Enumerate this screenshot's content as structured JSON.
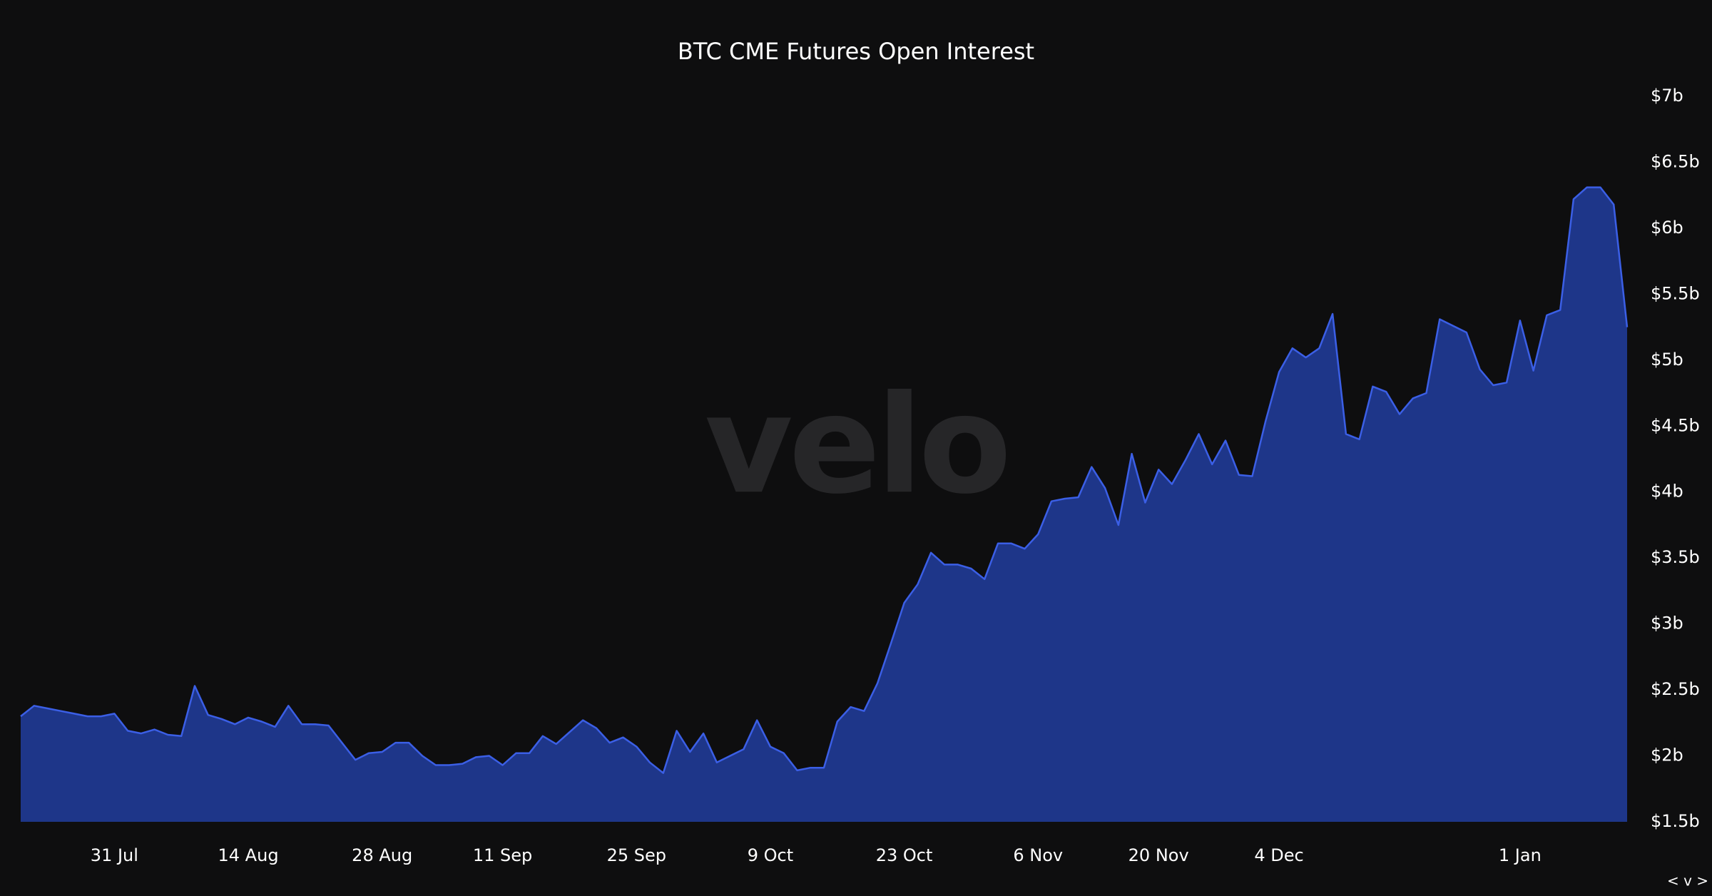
{
  "chart_data": {
    "type": "area",
    "title": "BTC CME Futures Open Interest",
    "watermark": "velo",
    "controls": "< v >",
    "categories": [
      null,
      null,
      null,
      null,
      null,
      null,
      null,
      "31 Jul",
      null,
      null,
      null,
      null,
      null,
      null,
      null,
      null,
      null,
      "14 Aug",
      null,
      null,
      null,
      null,
      null,
      null,
      null,
      null,
      null,
      "28 Aug",
      null,
      null,
      null,
      null,
      null,
      null,
      null,
      null,
      "11 Sep",
      null,
      null,
      null,
      null,
      null,
      null,
      null,
      null,
      null,
      "25 Sep",
      null,
      null,
      null,
      null,
      null,
      null,
      null,
      null,
      null,
      "9 Oct",
      null,
      null,
      null,
      null,
      null,
      null,
      null,
      null,
      null,
      "23 Oct",
      null,
      null,
      null,
      null,
      null,
      null,
      null,
      null,
      null,
      "6 Nov",
      null,
      null,
      null,
      null,
      null,
      null,
      null,
      null,
      "20 Nov",
      null,
      null,
      null,
      null,
      null,
      null,
      null,
      null,
      "4 Dec",
      null,
      null,
      null,
      null,
      null,
      null,
      null,
      null,
      null,
      null,
      null,
      null,
      null,
      null,
      null,
      null,
      null,
      "1 Jan",
      null,
      null,
      null,
      null,
      null,
      null,
      null,
      null
    ],
    "values": [
      2.3,
      2.38,
      2.36,
      2.34,
      2.32,
      2.3,
      2.3,
      2.32,
      2.19,
      2.17,
      2.2,
      2.16,
      2.15,
      2.53,
      2.31,
      2.28,
      2.24,
      2.29,
      2.26,
      2.22,
      2.38,
      2.24,
      2.24,
      2.23,
      2.1,
      1.97,
      2.02,
      2.03,
      2.1,
      2.1,
      2.0,
      1.93,
      1.93,
      1.94,
      1.99,
      2.0,
      1.93,
      2.02,
      2.02,
      2.15,
      2.09,
      2.18,
      2.27,
      2.21,
      2.1,
      2.14,
      2.07,
      1.95,
      1.87,
      2.19,
      2.03,
      2.17,
      1.95,
      2.0,
      2.05,
      2.27,
      2.07,
      2.02,
      1.89,
      1.91,
      1.91,
      2.26,
      2.37,
      2.34,
      2.55,
      2.85,
      3.16,
      3.3,
      3.54,
      3.45,
      3.45,
      3.42,
      3.34,
      3.61,
      3.61,
      3.57,
      3.68,
      3.93,
      3.95,
      3.96,
      4.19,
      4.03,
      3.75,
      4.29,
      3.92,
      4.17,
      4.06,
      4.24,
      4.44,
      4.21,
      4.39,
      4.13,
      4.12,
      4.54,
      4.91,
      5.09,
      5.02,
      5.09,
      5.35,
      4.44,
      4.4,
      4.8,
      4.76,
      4.59,
      4.71,
      4.75,
      5.31,
      5.26,
      5.21,
      4.93,
      4.81,
      4.83,
      5.3,
      4.92,
      5.34,
      5.38,
      6.22,
      6.31,
      6.31,
      6.18,
      5.25
    ],
    "color": "#1e3689",
    "line_color": "#3b5fe6",
    "ylim": [
      1.5,
      7
    ],
    "yticks": [
      {
        "value": 1.5,
        "label": "$1.5b"
      },
      {
        "value": 2,
        "label": "$2b"
      },
      {
        "value": 2.5,
        "label": "$2.5b"
      },
      {
        "value": 3,
        "label": "$3b"
      },
      {
        "value": 3.5,
        "label": "$3.5b"
      },
      {
        "value": 4,
        "label": "$4b"
      },
      {
        "value": 4.5,
        "label": "$4.5b"
      },
      {
        "value": 5,
        "label": "$5b"
      },
      {
        "value": 5.5,
        "label": "$5.5b"
      },
      {
        "value": 6,
        "label": "$6b"
      },
      {
        "value": 6.5,
        "label": "$6.5b"
      },
      {
        "value": 7,
        "label": "$7b"
      }
    ],
    "grid": false
  }
}
